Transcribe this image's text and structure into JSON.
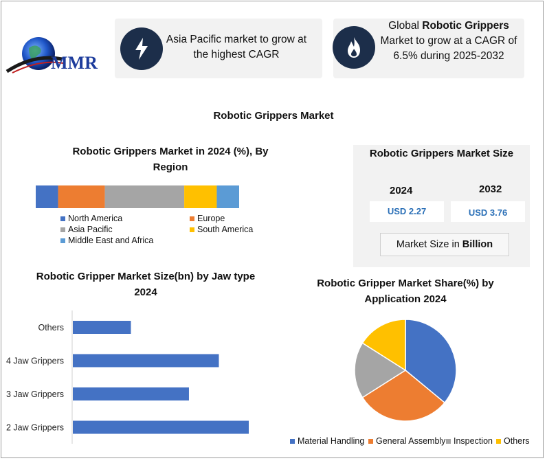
{
  "brand": {
    "logo_text": "MMR"
  },
  "colors": {
    "dark_navy": "#1c2e4a",
    "north_america": "#4472c4",
    "europe": "#ed7d31",
    "asia_pacific": "#a5a5a5",
    "south_america": "#ffc000",
    "mea": "#5b9bd5"
  },
  "info_cards": [
    {
      "icon": "lightning-icon",
      "text": "Asia Pacific market to grow at the highest CAGR"
    },
    {
      "icon": "flame-icon",
      "prefix": "Global ",
      "bold": "Robotic Grippers",
      "suffix": " Market to grow at a CAGR of 6.5% during 2025-2032"
    }
  ],
  "main_title": "Robotic Grippers Market",
  "market_size": {
    "title": "Robotic Grippers Market Size",
    "year1": "2024",
    "value1": "USD 2.27",
    "year2": "2032",
    "value2": "USD 3.76",
    "unit_prefix": "Market Size in ",
    "unit_bold": "Billion"
  },
  "chart_data": [
    {
      "type": "bar",
      "orientation": "horizontal-stacked",
      "title": "Robotic Grippers  Market in 2024 (%), By Region",
      "series": [
        {
          "name": "North America",
          "values": [
            11
          ]
        },
        {
          "name": "Europe",
          "values": [
            23
          ]
        },
        {
          "name": "Asia Pacific",
          "values": [
            39
          ]
        },
        {
          "name": "South America",
          "values": [
            16
          ]
        },
        {
          "name": "Middle East and Africa",
          "values": [
            11
          ]
        }
      ],
      "legend": "bottom"
    },
    {
      "type": "bar",
      "orientation": "horizontal",
      "title": "Robotic Gripper Market Size(bn) by Jaw type 2024",
      "categories": [
        "Others",
        "4 Jaw Grippers",
        "3 Jaw Grippers",
        "2 Jaw Grippers"
      ],
      "values": [
        0.33,
        0.83,
        0.66,
        1.0
      ],
      "xlim": [
        0,
        1.1
      ]
    },
    {
      "type": "pie",
      "title": "Robotic Gripper Market Share(%) by Application 2024",
      "labels": [
        "Material Handling",
        "General Assembly",
        "Inspection",
        "Others"
      ],
      "values": [
        36,
        30,
        18,
        16
      ],
      "colors": [
        "#4472c4",
        "#ed7d31",
        "#a5a5a5",
        "#ffc000"
      ],
      "legend": "bottom"
    }
  ]
}
